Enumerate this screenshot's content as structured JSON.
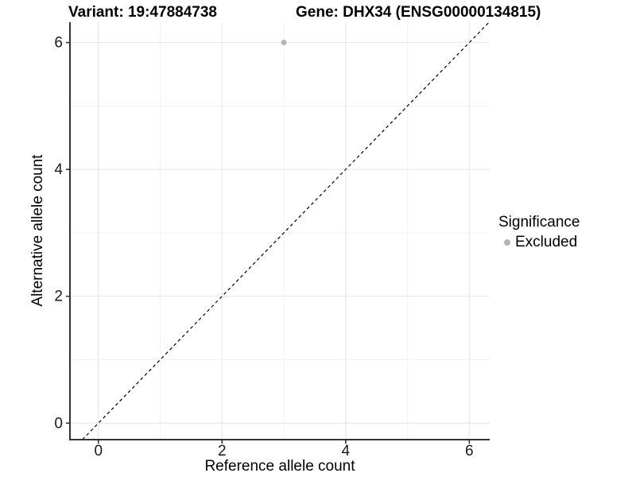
{
  "figure": {
    "background": "#ffffff"
  },
  "chart_data": {
    "type": "scatter",
    "title_left": "Variant: 19:47884738",
    "title_right": "Gene: DHX34 (ENSG00000134815)",
    "xlabel": "Reference allele count",
    "ylabel": "Alternative allele count",
    "xlim": [
      -0.46,
      6.33
    ],
    "ylim": [
      -0.26,
      6.32
    ],
    "xticks": [
      0,
      2,
      4,
      6
    ],
    "yticks": [
      0,
      2,
      4,
      6
    ],
    "xticks_minor": [
      1,
      3,
      5
    ],
    "yticks_minor": [
      1,
      3,
      5
    ],
    "grid": "major-and-minor",
    "series": [
      {
        "name": "Excluded",
        "color": "#b4b4b4",
        "marker": "circle",
        "points": [
          {
            "x": 3,
            "y": 6
          }
        ]
      }
    ],
    "reference_line": {
      "slope": 1,
      "intercept": 0,
      "style": "dashed",
      "color": "#000000"
    },
    "legend": {
      "title": "Significance",
      "position": "right",
      "items": [
        {
          "label": "Excluded",
          "color": "#b4b4b4",
          "marker": "circle"
        }
      ]
    },
    "colors": {
      "grid_major": "#e6e6e6",
      "grid_minor": "#f2f2f2",
      "axis_line": "#333333",
      "tick_mark": "#333333",
      "tick_text": "#1a1a1a"
    }
  }
}
